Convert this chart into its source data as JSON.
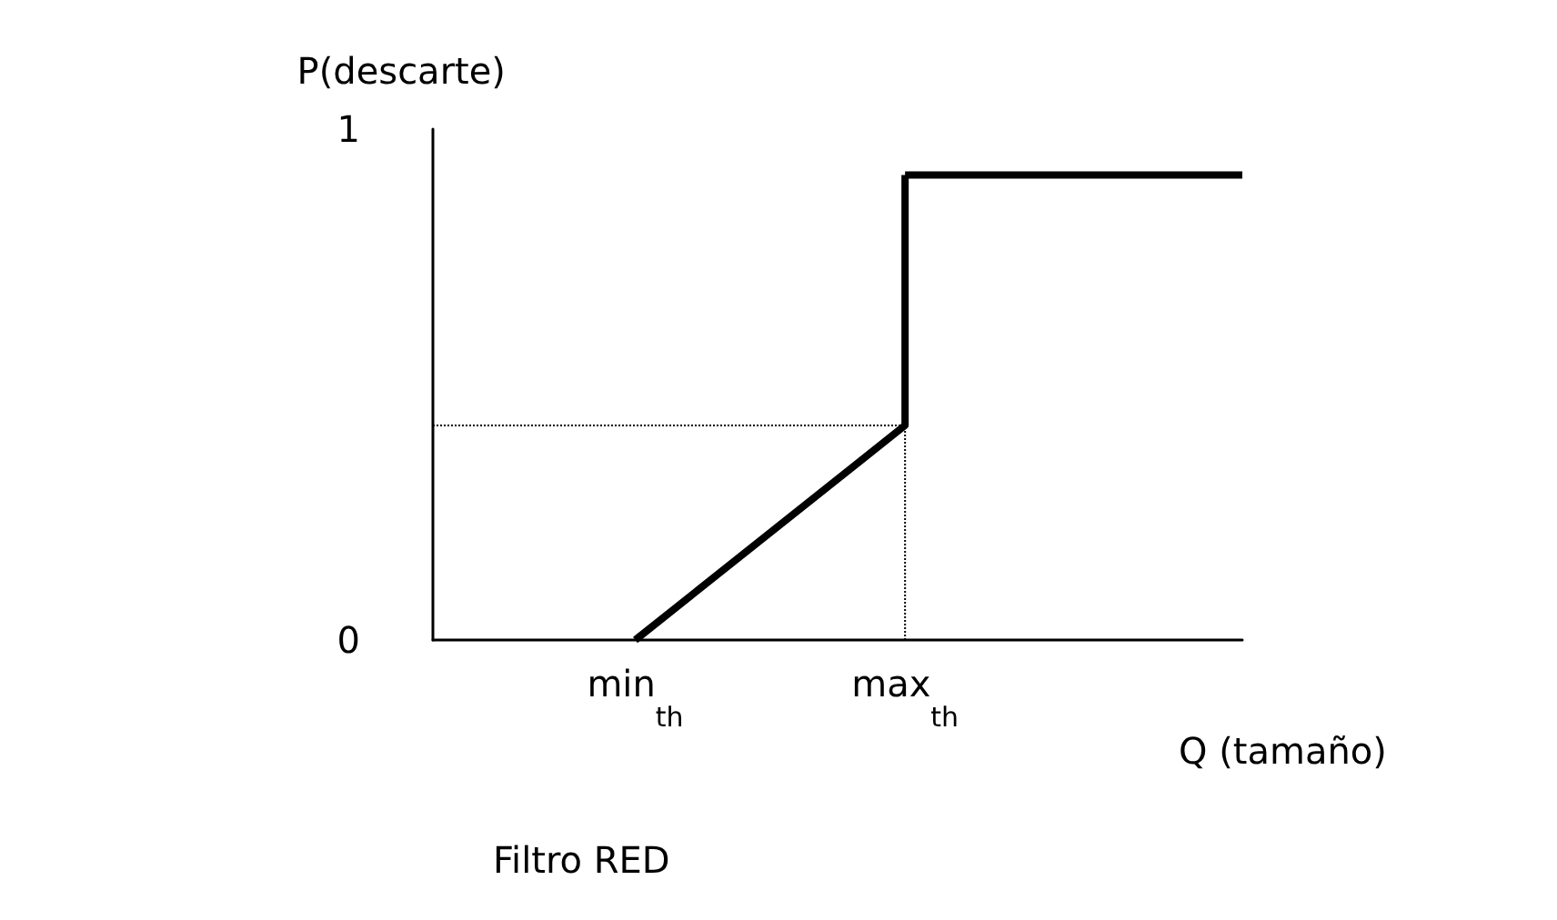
{
  "chart_data": {
    "type": "line",
    "title": "Filtro RED",
    "xlabel": "Q (tamaño)",
    "ylabel": "P(descarte)",
    "categories": [
      null,
      null,
      null,
      "min$_{th}$",
      null,
      null,
      null,
      "max$_{th}$",
      null,
      null,
      null,
      null,
      null
    ],
    "ylim": [
      0,
      1
    ],
    "yticks": [
      0,
      1
    ],
    "marker": "none",
    "series": [
      {
        "color": "#000000",
        "line_style": "solid",
        "x": [
          "min$_{th}$",
          "max$_{th}$",
          "max$_{th}$"
        ],
        "values": [
          0,
          0.42,
          0.91
        ]
      },
      {
        "color": "#000000",
        "line_style": "solid",
        "values": [
          null,
          null,
          null,
          null,
          null,
          null,
          null,
          0.91,
          0.91,
          0.91,
          0.91,
          0.91,
          0.91
        ]
      },
      {
        "color": "#000000",
        "line_style": "dotted",
        "values": [
          0.42,
          0.42,
          0.42,
          0.42,
          0.42,
          0.42,
          0.42,
          0.42,
          null,
          null,
          null,
          null,
          null
        ]
      },
      {
        "color": "#000000",
        "line_style": "dotted",
        "x": [
          "max$_{th}$",
          "max$_{th}$"
        ],
        "values": [
          0,
          0.42
        ]
      }
    ]
  }
}
